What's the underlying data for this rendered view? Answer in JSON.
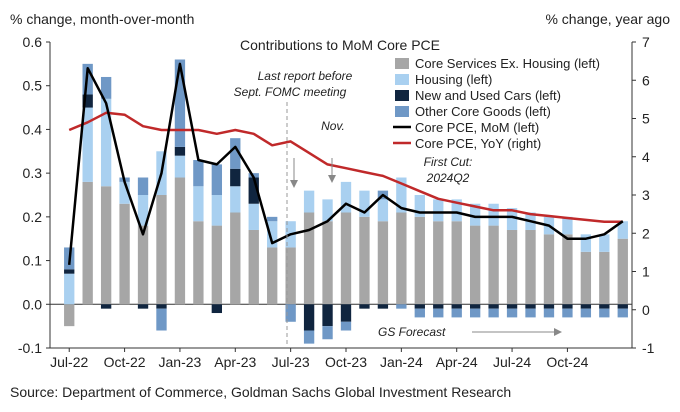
{
  "chart_data": {
    "type": "bar",
    "title": "Contributions to MoM Core PCE",
    "left_axis_title": "% change, month-over-month",
    "right_axis_title": "% change, year ago",
    "source": "Source: Department of Commerce, Goldman Sachs Global Investment Research",
    "x_tick_labels": [
      "Jul-22",
      "Oct-22",
      "Jan-23",
      "Apr-23",
      "Jul-23",
      "Oct-23",
      "Jan-24",
      "Apr-24",
      "Jul-24",
      "Oct-24"
    ],
    "x_tick_index": [
      0,
      3,
      6,
      9,
      12,
      15,
      18,
      21,
      24,
      27
    ],
    "left_ticks": [
      "-0.1",
      "0.0",
      "0.1",
      "0.2",
      "0.3",
      "0.4",
      "0.5",
      "0.6"
    ],
    "right_ticks": [
      "-1",
      "0",
      "1",
      "2",
      "3",
      "4",
      "5",
      "6",
      "7"
    ],
    "ylim_left": [
      -0.1,
      0.6
    ],
    "ylim_right": [
      -1,
      7
    ],
    "n_months": 31,
    "stack_series": [
      {
        "name": "Core Services Ex. Housing (left)",
        "color": "#a6a6a6",
        "values": [
          -0.05,
          0.28,
          0.27,
          0.23,
          0.18,
          0.25,
          0.29,
          0.19,
          0.18,
          0.21,
          0.17,
          0.13,
          0.13,
          0.21,
          0.19,
          0.21,
          0.2,
          0.19,
          0.21,
          0.2,
          0.19,
          0.19,
          0.18,
          0.18,
          0.17,
          0.17,
          0.16,
          0.16,
          0.12,
          0.12,
          0.15
        ]
      },
      {
        "name": "Housing (left)",
        "color": "#a9d0f0",
        "values": [
          0.07,
          0.17,
          0.2,
          0.05,
          0.07,
          0.1,
          0.05,
          0.08,
          0.07,
          0.06,
          0.06,
          0.06,
          0.06,
          0.05,
          0.05,
          0.07,
          0.06,
          0.05,
          0.08,
          0.05,
          0.05,
          0.05,
          0.05,
          0.05,
          0.05,
          0.04,
          0.04,
          0.04,
          0.04,
          0.04,
          0.04
        ]
      },
      {
        "name": "New and Used Cars (left)",
        "color": "#10253f",
        "values": [
          0.01,
          0.03,
          -0.01,
          0.0,
          -0.01,
          -0.01,
          0.02,
          0.0,
          -0.02,
          0.04,
          0.06,
          0.0,
          0.0,
          -0.06,
          -0.05,
          -0.04,
          -0.01,
          -0.01,
          0.0,
          -0.01,
          -0.01,
          -0.01,
          -0.01,
          -0.01,
          -0.01,
          -0.01,
          -0.01,
          -0.01,
          -0.01,
          -0.01,
          -0.01
        ]
      },
      {
        "name": "Other Core Goods (left)",
        "color": "#6f98c6",
        "values": [
          0.05,
          0.07,
          0.05,
          0.01,
          0.04,
          -0.05,
          0.2,
          0.06,
          0.07,
          0.07,
          0.01,
          0.01,
          -0.04,
          -0.03,
          -0.03,
          -0.02,
          0.0,
          0.02,
          -0.01,
          -0.02,
          -0.02,
          -0.02,
          -0.02,
          -0.02,
          -0.02,
          -0.02,
          -0.02,
          -0.02,
          -0.02,
          -0.02,
          -0.02
        ]
      }
    ],
    "mom_line": {
      "name": "Core PCE, MoM (left)",
      "color": "#000000",
      "values": [
        0.09,
        0.54,
        0.46,
        0.28,
        0.16,
        0.3,
        0.55,
        0.33,
        0.32,
        0.36,
        0.29,
        0.14,
        0.16,
        0.17,
        0.19,
        0.23,
        0.21,
        0.25,
        0.22,
        0.21,
        0.21,
        0.21,
        0.2,
        0.2,
        0.2,
        0.19,
        0.18,
        0.15,
        0.15,
        0.16,
        0.19
      ]
    },
    "yoy_line": {
      "name": "Core PCE, YoY (right)",
      "color": "#c0292a",
      "values": [
        4.7,
        4.9,
        5.15,
        5.1,
        4.8,
        4.7,
        4.7,
        4.7,
        4.6,
        4.7,
        4.6,
        4.3,
        4.4,
        4.1,
        3.8,
        3.7,
        3.6,
        3.5,
        3.3,
        3.1,
        2.9,
        2.8,
        2.7,
        2.6,
        2.6,
        2.5,
        2.45,
        2.4,
        2.35,
        2.3,
        2.3
      ]
    },
    "annotations": {
      "last_report_line1": "Last report before",
      "last_report_line2": "Sept. FOMC meeting",
      "nov": "Nov.",
      "first_cut_line1": "First Cut:",
      "first_cut_line2": "2024Q2",
      "gs_forecast": "GS Forecast"
    },
    "legend_position": "top-right",
    "grid": false
  }
}
